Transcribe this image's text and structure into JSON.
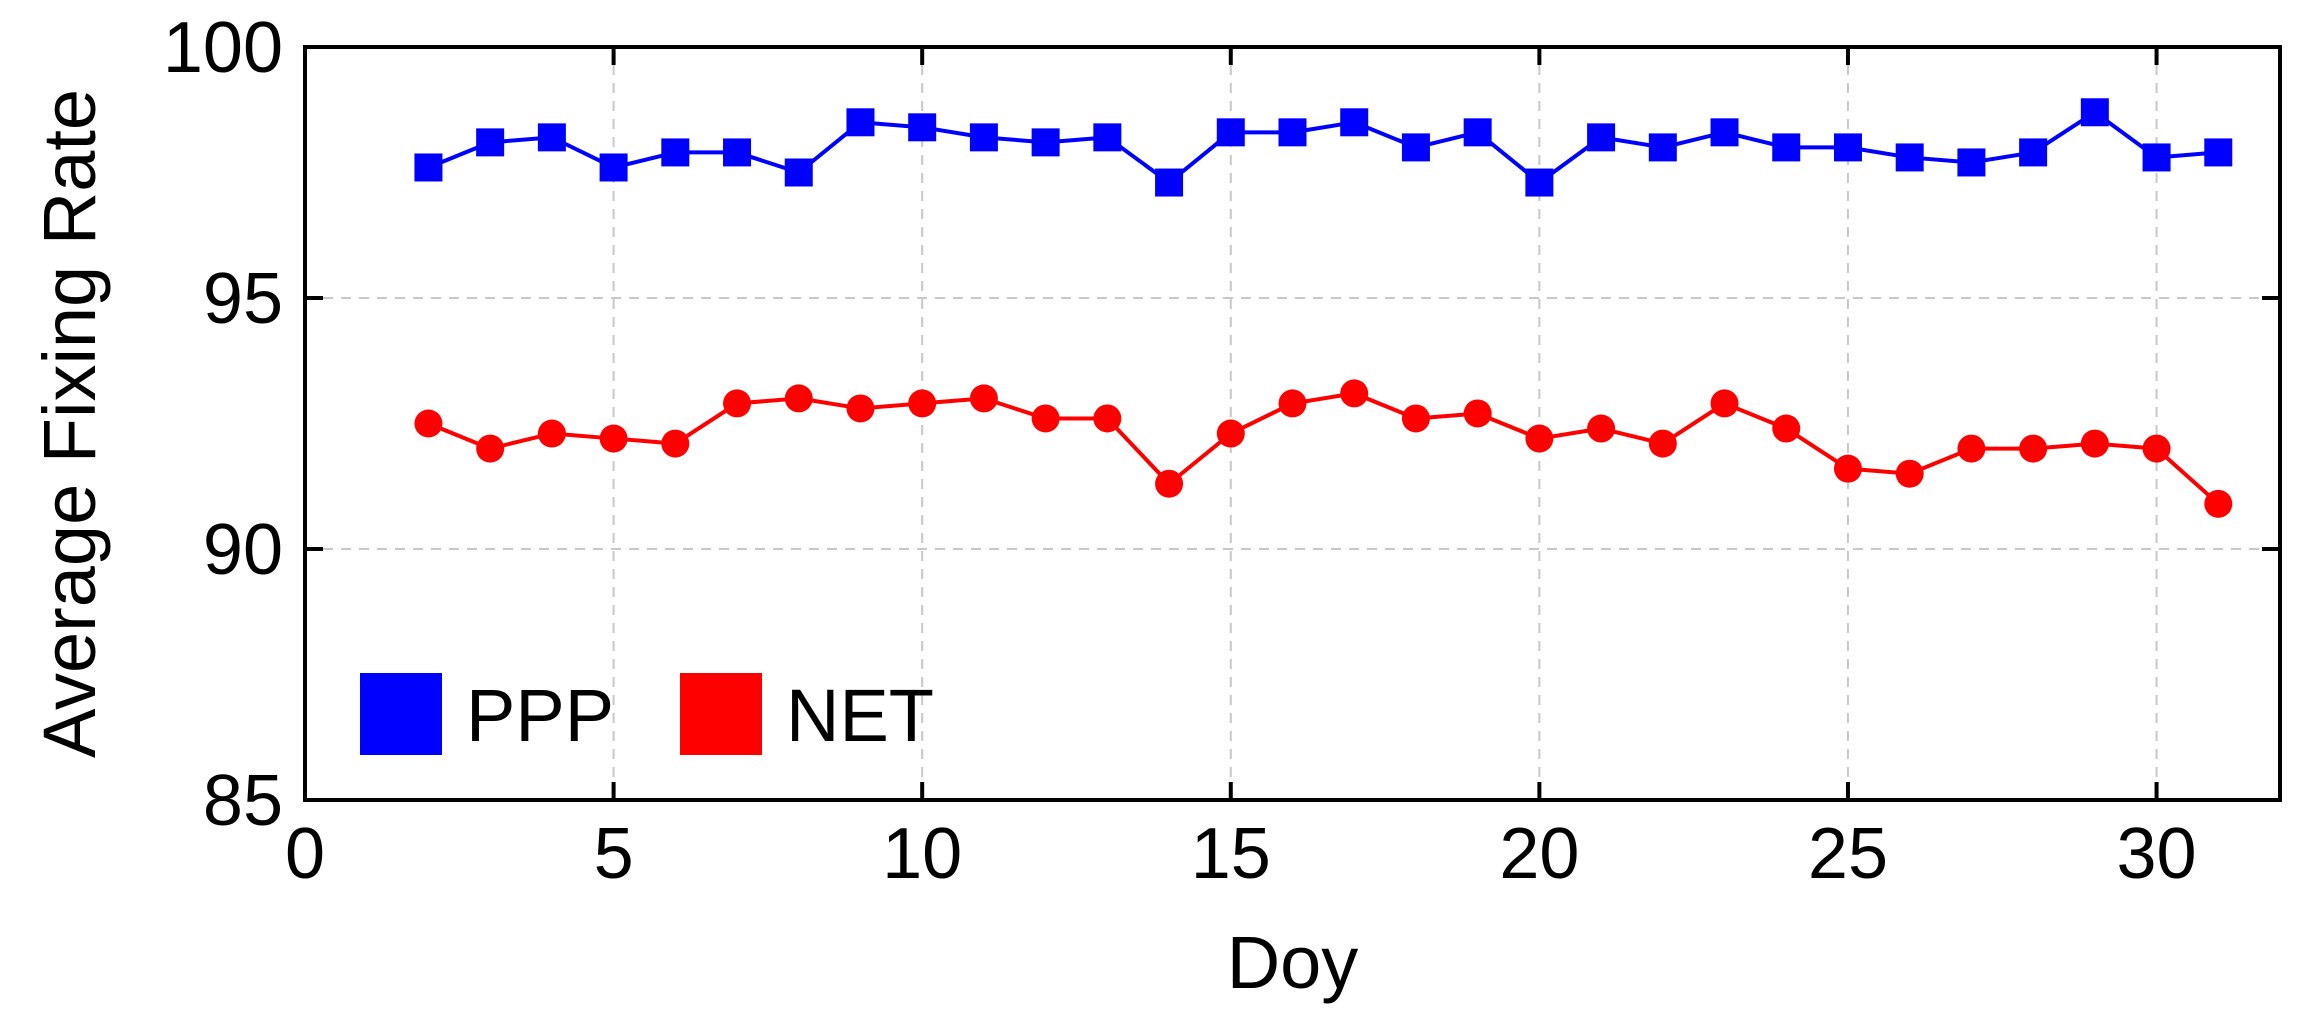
{
  "chart_data": {
    "type": "line",
    "xlabel": "Doy",
    "ylabel": "Average Fixing Rate",
    "xlim": [
      0,
      32
    ],
    "ylim": [
      85,
      100
    ],
    "xticks": [
      0,
      5,
      10,
      15,
      20,
      25,
      30
    ],
    "yticks": [
      85,
      90,
      95,
      100
    ],
    "grid": true,
    "legend_position": "bottom-left",
    "x": [
      2,
      3,
      4,
      5,
      6,
      7,
      8,
      9,
      10,
      11,
      12,
      13,
      14,
      15,
      16,
      17,
      18,
      19,
      20,
      21,
      22,
      23,
      24,
      25,
      26,
      27,
      28,
      29,
      30,
      31
    ],
    "series": [
      {
        "name": "PPP",
        "color": "#0000ff",
        "marker": "square",
        "values": [
          97.6,
          98.1,
          98.2,
          97.6,
          97.9,
          97.9,
          97.5,
          98.5,
          98.4,
          98.2,
          98.1,
          98.2,
          97.3,
          98.3,
          98.3,
          98.5,
          98.0,
          98.3,
          97.3,
          98.2,
          98.0,
          98.3,
          98.0,
          98.0,
          97.8,
          97.7,
          97.9,
          98.7,
          97.8,
          97.9
        ]
      },
      {
        "name": "NET",
        "color": "#ff0000",
        "marker": "circle",
        "values": [
          92.5,
          92.0,
          92.3,
          92.2,
          92.1,
          92.9,
          93.0,
          92.8,
          92.9,
          93.0,
          92.6,
          92.6,
          91.3,
          92.3,
          92.9,
          93.1,
          92.6,
          92.7,
          92.2,
          92.4,
          92.1,
          92.9,
          92.4,
          91.6,
          91.5,
          92.0,
          92.0,
          92.1,
          92.0,
          90.9
        ]
      }
    ]
  }
}
